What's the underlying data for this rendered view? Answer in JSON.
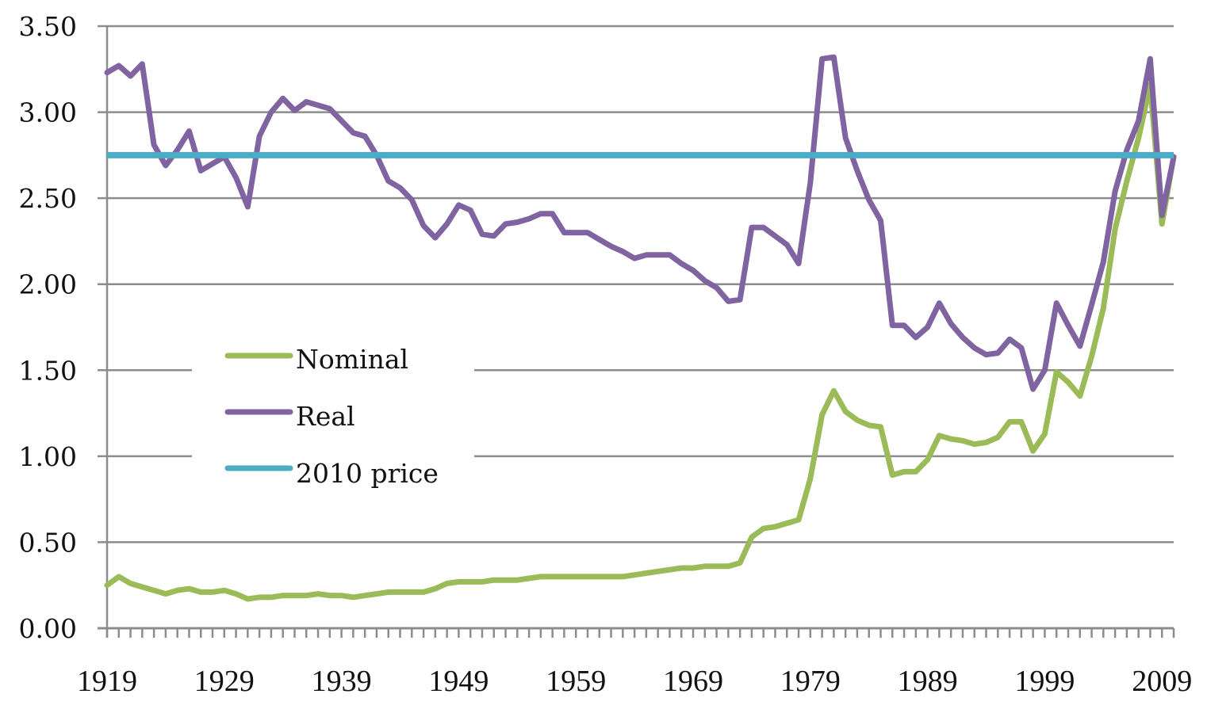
{
  "chart_data": {
    "type": "line",
    "title": "",
    "xlabel": "",
    "ylabel": "",
    "ylim": [
      0,
      3.5
    ],
    "yticks": [
      "0.00",
      "0.50",
      "1.00",
      "1.50",
      "2.00",
      "2.50",
      "3.00",
      "3.50"
    ],
    "ytick_values": [
      0,
      0.5,
      1.0,
      1.5,
      2.0,
      2.5,
      3.0,
      3.5
    ],
    "xticks": [
      "1919",
      "1929",
      "1939",
      "1949",
      "1959",
      "1969",
      "1979",
      "1989",
      "1999",
      "2009"
    ],
    "grid": "horizontal",
    "legend_position": "center-left",
    "x": [
      1919,
      1920,
      1921,
      1922,
      1923,
      1924,
      1925,
      1926,
      1927,
      1928,
      1929,
      1930,
      1931,
      1932,
      1933,
      1934,
      1935,
      1936,
      1937,
      1938,
      1939,
      1940,
      1941,
      1942,
      1943,
      1944,
      1945,
      1946,
      1947,
      1948,
      1949,
      1950,
      1951,
      1952,
      1953,
      1954,
      1955,
      1956,
      1957,
      1958,
      1959,
      1960,
      1961,
      1962,
      1963,
      1964,
      1965,
      1966,
      1967,
      1968,
      1969,
      1970,
      1971,
      1972,
      1973,
      1974,
      1975,
      1976,
      1977,
      1978,
      1979,
      1980,
      1981,
      1982,
      1983,
      1984,
      1985,
      1986,
      1987,
      1988,
      1989,
      1990,
      1991,
      1992,
      1993,
      1994,
      1995,
      1996,
      1997,
      1998,
      1999,
      2000,
      2001,
      2002,
      2003,
      2004,
      2005,
      2006,
      2007,
      2008,
      2009,
      2010
    ],
    "series": [
      {
        "name": "Nominal",
        "color": "#9bbb59",
        "values": [
          0.25,
          0.3,
          0.26,
          0.24,
          0.22,
          0.2,
          0.22,
          0.23,
          0.21,
          0.21,
          0.22,
          0.2,
          0.17,
          0.18,
          0.18,
          0.19,
          0.19,
          0.19,
          0.2,
          0.19,
          0.19,
          0.18,
          0.19,
          0.2,
          0.21,
          0.21,
          0.21,
          0.21,
          0.23,
          0.26,
          0.27,
          0.27,
          0.27,
          0.28,
          0.28,
          0.28,
          0.29,
          0.3,
          0.3,
          0.3,
          0.3,
          0.3,
          0.3,
          0.3,
          0.3,
          0.31,
          0.32,
          0.33,
          0.34,
          0.35,
          0.35,
          0.36,
          0.36,
          0.36,
          0.38,
          0.53,
          0.58,
          0.59,
          0.61,
          0.63,
          0.87,
          1.24,
          1.38,
          1.26,
          1.21,
          1.18,
          1.17,
          0.89,
          0.91,
          0.91,
          0.98,
          1.12,
          1.1,
          1.09,
          1.07,
          1.08,
          1.11,
          1.2,
          1.2,
          1.03,
          1.13,
          1.49,
          1.43,
          1.35,
          1.58,
          1.86,
          2.32,
          2.6,
          2.85,
          3.16,
          2.35,
          2.74
        ]
      },
      {
        "name": "Real",
        "color": "#8064a2",
        "values": [
          3.23,
          3.27,
          3.21,
          3.28,
          2.81,
          2.69,
          2.78,
          2.89,
          2.66,
          2.7,
          2.74,
          2.62,
          2.45,
          2.86,
          3.0,
          3.08,
          3.01,
          3.06,
          3.04,
          3.02,
          2.95,
          2.88,
          2.86,
          2.75,
          2.6,
          2.56,
          2.49,
          2.34,
          2.27,
          2.35,
          2.46,
          2.43,
          2.29,
          2.28,
          2.35,
          2.36,
          2.38,
          2.41,
          2.41,
          2.3,
          2.3,
          2.3,
          2.26,
          2.22,
          2.19,
          2.15,
          2.17,
          2.17,
          2.17,
          2.12,
          2.08,
          2.02,
          1.98,
          1.9,
          1.91,
          2.33,
          2.33,
          2.28,
          2.23,
          2.12,
          2.59,
          3.31,
          3.32,
          2.85,
          2.66,
          2.49,
          2.37,
          1.76,
          1.76,
          1.69,
          1.75,
          1.89,
          1.77,
          1.69,
          1.63,
          1.59,
          1.6,
          1.68,
          1.63,
          1.39,
          1.5,
          1.89,
          1.76,
          1.64,
          1.88,
          2.13,
          2.54,
          2.78,
          2.95,
          3.31,
          2.4,
          2.74
        ]
      },
      {
        "name": "2010 price",
        "color": "#4bacc6",
        "constant": 2.75
      }
    ]
  },
  "colors": {
    "gridline": "#8c8c8c",
    "axis": "#8c8c8c",
    "text": "#111111"
  }
}
